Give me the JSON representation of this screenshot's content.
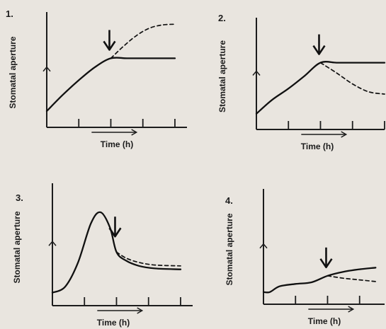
{
  "chart_data": [
    {
      "type": "line",
      "panel_number": "1.",
      "xlabel": "Time (h)",
      "ylabel": "Stomatal aperture",
      "x_ticks": 4,
      "arrow_at": 2.0,
      "series": [
        {
          "style": "solid",
          "x": [
            0,
            0.5,
            1.0,
            1.5,
            2.0,
            2.5,
            3.0,
            4.0
          ],
          "y": [
            0.2,
            0.4,
            0.58,
            0.74,
            0.85,
            0.85,
            0.85,
            0.85
          ]
        },
        {
          "style": "dashed",
          "x": [
            2.0,
            2.4,
            2.8,
            3.2,
            3.6,
            4.0
          ],
          "y": [
            0.85,
            1.0,
            1.13,
            1.22,
            1.26,
            1.27
          ]
        }
      ]
    },
    {
      "type": "line",
      "panel_number": "2.",
      "xlabel": "Time (h)",
      "ylabel": "Stomatal aperture",
      "x_ticks": 4,
      "arrow_at": 2.0,
      "series": [
        {
          "style": "solid",
          "x": [
            0,
            0.5,
            1.0,
            1.5,
            2.0,
            2.5,
            3.0,
            4.0
          ],
          "y": [
            0.2,
            0.38,
            0.52,
            0.68,
            0.85,
            0.85,
            0.85,
            0.85
          ]
        },
        {
          "style": "dashed",
          "x": [
            2.0,
            2.5,
            3.0,
            3.5,
            4.0
          ],
          "y": [
            0.85,
            0.72,
            0.58,
            0.48,
            0.45
          ]
        }
      ]
    },
    {
      "type": "line",
      "panel_number": "3.",
      "xlabel": "Time (h)",
      "ylabel": "Stomatal aperture",
      "x_ticks": 4,
      "arrow_at": 2.0,
      "series": [
        {
          "style": "solid",
          "x": [
            0,
            0.4,
            0.8,
            1.2,
            1.5,
            1.8,
            2.0,
            2.3,
            2.7,
            3.2,
            4.0
          ],
          "y": [
            0.15,
            0.22,
            0.5,
            0.95,
            1.08,
            0.9,
            0.62,
            0.52,
            0.46,
            0.43,
            0.42
          ]
        },
        {
          "style": "dashed",
          "x": [
            2.0,
            2.3,
            2.7,
            3.2,
            4.0
          ],
          "y": [
            0.62,
            0.55,
            0.5,
            0.47,
            0.46
          ]
        }
      ]
    },
    {
      "type": "line",
      "panel_number": "4.",
      "xlabel": "Time (h)",
      "ylabel": "Stomatal aperture",
      "x_ticks": 4,
      "arrow_at": 2.0,
      "series": [
        {
          "style": "solid",
          "x": [
            0,
            0.2,
            0.5,
            1.0,
            1.5,
            2.0,
            2.5,
            3.0,
            3.5,
            4.0
          ],
          "y": [
            0.15,
            0.15,
            0.22,
            0.25,
            0.27,
            0.35,
            0.4,
            0.43,
            0.45,
            0.46
          ]
        },
        {
          "style": "dashed",
          "x": [
            2.0,
            2.5,
            3.0,
            3.5,
            4.0
          ],
          "y": [
            0.35,
            0.32,
            0.3,
            0.28,
            0.27
          ]
        }
      ]
    }
  ]
}
